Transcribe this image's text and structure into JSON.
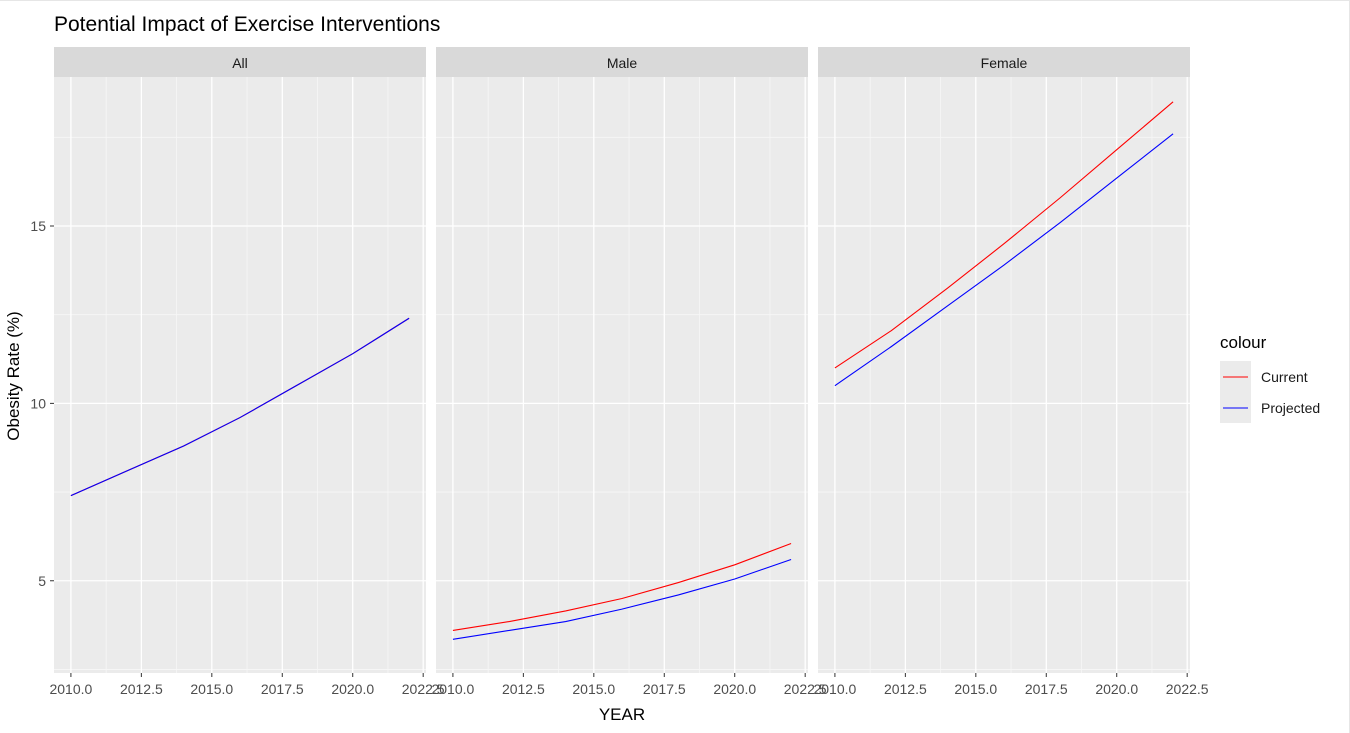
{
  "chart_data": {
    "type": "line",
    "title": "Potential Impact of Exercise Interventions",
    "xlabel": "YEAR",
    "ylabel": "Obesity Rate (%)",
    "xlim": [
      2009.4,
      2022.6
    ],
    "ylim": [
      2.4,
      19.2
    ],
    "x_ticks": [
      2010.0,
      2012.5,
      2015.0,
      2017.5,
      2020.0,
      2022.5
    ],
    "x_tick_labels": [
      "2010.0",
      "2012.5",
      "2015.0",
      "2017.5",
      "2020.0",
      "2022.5"
    ],
    "y_ticks": [
      5,
      10,
      15
    ],
    "y_tick_labels": [
      "5",
      "10",
      "15"
    ],
    "grid": true,
    "legend": {
      "title": "colour",
      "position": "right",
      "entries": [
        {
          "name": "Current",
          "color": "#ff0000"
        },
        {
          "name": "Projected",
          "color": "#0000ff"
        }
      ]
    },
    "facets": [
      {
        "label": "All",
        "series": [
          {
            "name": "Current",
            "x": [
              2010,
              2012,
              2014,
              2016,
              2018,
              2020,
              2022
            ],
            "values": [
              7.4,
              8.1,
              8.8,
              9.6,
              10.5,
              11.4,
              12.4
            ]
          },
          {
            "name": "Projected",
            "x": [
              2010,
              2012,
              2014,
              2016,
              2018,
              2020,
              2022
            ],
            "values": [
              7.4,
              8.1,
              8.8,
              9.6,
              10.5,
              11.4,
              12.4
            ]
          }
        ]
      },
      {
        "label": "Male",
        "series": [
          {
            "name": "Current",
            "x": [
              2010,
              2012,
              2014,
              2016,
              2018,
              2020,
              2022
            ],
            "values": [
              3.6,
              3.85,
              4.15,
              4.5,
              4.95,
              5.45,
              6.05
            ]
          },
          {
            "name": "Projected",
            "x": [
              2010,
              2012,
              2014,
              2016,
              2018,
              2020,
              2022
            ],
            "values": [
              3.35,
              3.6,
              3.85,
              4.2,
              4.6,
              5.05,
              5.6
            ]
          }
        ]
      },
      {
        "label": "Female",
        "series": [
          {
            "name": "Current",
            "x": [
              2010,
              2012,
              2014,
              2016,
              2018,
              2020,
              2022
            ],
            "values": [
              11.0,
              12.05,
              13.25,
              14.5,
              15.8,
              17.15,
              18.5
            ]
          },
          {
            "name": "Projected",
            "x": [
              2010,
              2012,
              2014,
              2016,
              2018,
              2020,
              2022
            ],
            "values": [
              10.5,
              11.6,
              12.75,
              13.9,
              15.1,
              16.35,
              17.6
            ]
          }
        ]
      }
    ]
  }
}
